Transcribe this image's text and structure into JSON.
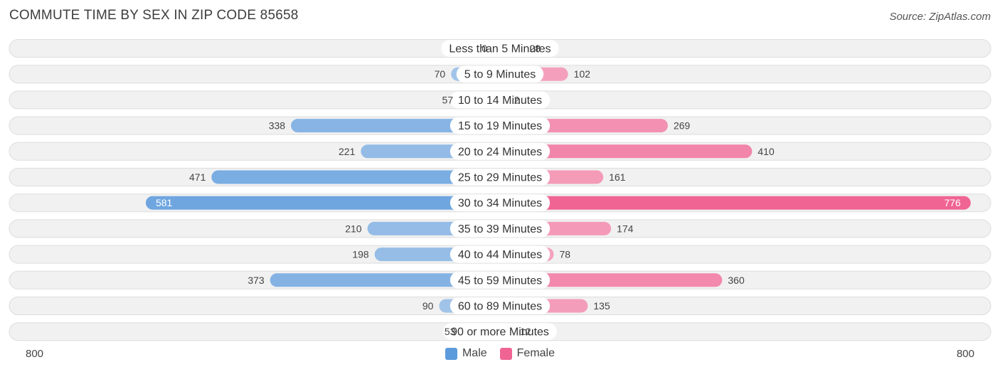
{
  "header": {
    "title": "COMMUTE TIME BY SEX IN ZIP CODE 85658",
    "source": "Source: ZipAtlas.com"
  },
  "axis": {
    "left_label": "800",
    "right_label": "800"
  },
  "legend": {
    "male_label": "Male",
    "female_label": "Female"
  },
  "colors": {
    "male_light": "#a9c8ea",
    "male_dark": "#5b9bdc",
    "female_light": "#f5a9c2",
    "female_dark": "#f06494",
    "row_bg": "#f1f1f1",
    "row_border": "#dddddd"
  },
  "chart_data": {
    "type": "bar",
    "orientation": "horizontal-diverging",
    "title": "COMMUTE TIME BY SEX IN ZIP CODE 85658",
    "categories": [
      "Less than 5 Minutes",
      "5 to 9 Minutes",
      "10 to 14 Minutes",
      "15 to 19 Minutes",
      "20 to 24 Minutes",
      "25 to 29 Minutes",
      "30 to 34 Minutes",
      "35 to 39 Minutes",
      "40 to 44 Minutes",
      "45 to 59 Minutes",
      "60 to 89 Minutes",
      "90 or more Minutes"
    ],
    "series": [
      {
        "name": "Male",
        "values": [
          0,
          70,
          57,
          338,
          221,
          471,
          581,
          210,
          198,
          373,
          90,
          53
        ]
      },
      {
        "name": "Female",
        "values": [
          28,
          102,
          2,
          269,
          410,
          161,
          776,
          174,
          78,
          360,
          135,
          12
        ]
      }
    ],
    "xlim": [
      -800,
      800
    ],
    "legend_position": "bottom-center"
  }
}
